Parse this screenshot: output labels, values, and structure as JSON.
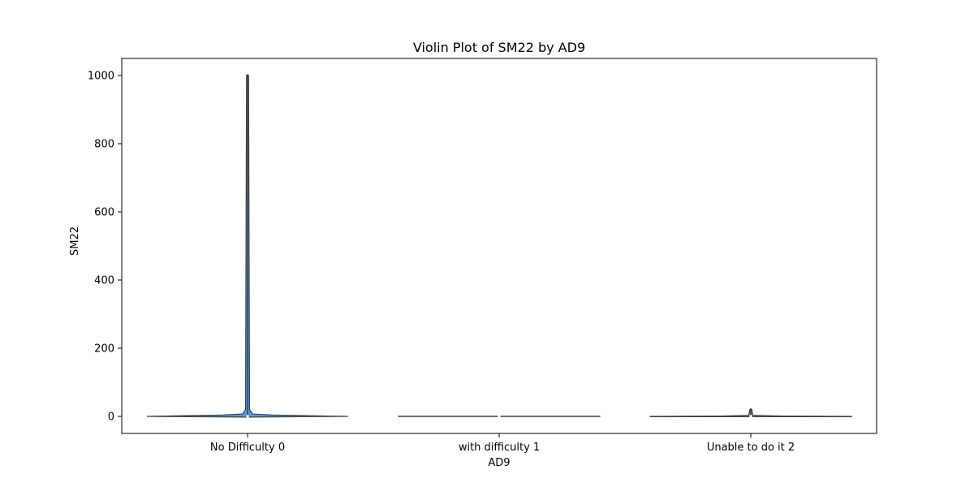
{
  "chart_data": {
    "type": "violin",
    "title": "Violin Plot of SM22 by AD9",
    "xlabel": "AD9",
    "ylabel": "SM22",
    "categories": [
      "No Difficulty 0",
      "with difficulty 1",
      "Unable to do it 2"
    ],
    "ylim": [
      -50,
      1050
    ],
    "yticks": [
      0,
      200,
      400,
      600,
      800,
      1000
    ],
    "grid": false,
    "colors": {
      "violin_fill": "#5b9bd5",
      "violin_edge": "#3f3f3f",
      "axes": "#000000"
    },
    "violins": [
      {
        "category": "No Difficulty 0",
        "min": 0,
        "q1": 0,
        "median": 0,
        "q3": 0,
        "max": 1000,
        "profile": [
          [
            -2,
            0.0
          ],
          [
            0,
            1.0
          ],
          [
            2,
            0.6
          ],
          [
            4,
            0.25
          ],
          [
            7,
            0.05
          ],
          [
            20,
            0.02
          ],
          [
            1000,
            0.01
          ]
        ]
      },
      {
        "category": "with difficulty 1",
        "min": 0,
        "q1": 0,
        "median": 0,
        "q3": 0,
        "max": 0,
        "profile": [
          [
            -0.3,
            1.0
          ],
          [
            0.3,
            1.0
          ]
        ]
      },
      {
        "category": "Unable to do it 2",
        "min": 0,
        "q1": 0,
        "median": 0,
        "q3": 0,
        "max": 20,
        "profile": [
          [
            -1,
            1.0
          ],
          [
            0,
            1.0
          ],
          [
            1,
            0.3
          ],
          [
            3,
            0.02
          ],
          [
            20,
            0.01
          ]
        ]
      }
    ]
  }
}
